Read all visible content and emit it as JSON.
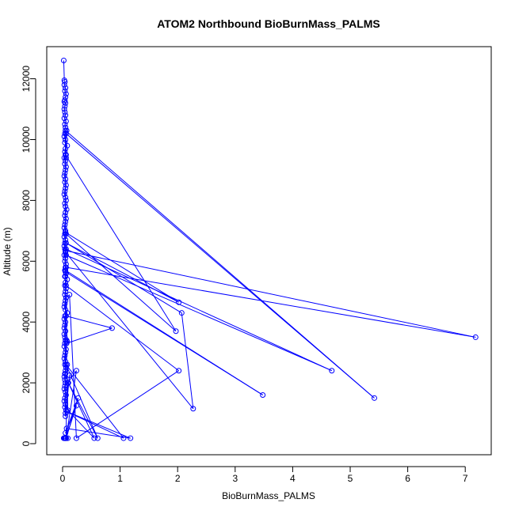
{
  "chart_data": {
    "type": "line",
    "title": "ATOM2 Northbound BioBurnMass_PALMS",
    "xlabel": "BioBurnMass_PALMS",
    "ylabel": "Altitude (m)",
    "xlim": [
      0,
      7.5
    ],
    "ylim": [
      0,
      12600
    ],
    "x_ticks": [
      "0",
      "1",
      "2",
      "3",
      "4",
      "5",
      "6",
      "7"
    ],
    "y_ticks": [
      "0",
      "2000",
      "4000",
      "6000",
      "8000",
      "10000",
      "12000"
    ],
    "grid": false,
    "legend": "none",
    "series_color": "#0000ff",
    "series": [
      {
        "x": [
          0.02,
          0.03,
          0.04,
          0.03,
          0.05,
          0.04,
          0.06,
          0.05,
          0.04,
          0.03,
          0.05,
          0.04,
          0.03,
          0.04,
          0.05,
          0.03,
          0.06,
          0.04,
          0.05,
          0.07,
          0.04,
          0.03,
          0.05,
          0.04,
          0.08,
          0.05,
          0.04,
          0.06,
          0.03,
          0.05,
          0.04,
          0.06,
          0.05,
          0.04,
          0.03,
          0.05,
          0.04,
          0.06,
          0.05,
          0.04,
          0.03,
          0.05,
          0.06,
          0.04,
          0.05,
          0.07,
          0.05,
          0.04,
          0.06,
          0.05,
          0.04,
          0.03,
          0.05,
          0.04,
          0.03,
          0.05,
          0.04,
          0.03,
          0.04,
          0.05,
          0.03,
          0.05,
          0.04,
          0.06,
          0.05,
          0.04,
          0.06,
          0.05,
          0.08,
          0.05,
          0.04,
          0.06,
          0.05,
          0.04,
          0.06,
          0.05,
          0.04,
          0.03,
          0.05,
          0.08,
          0.04,
          0.03,
          0.05,
          0.04,
          0.03,
          0.05,
          0.03,
          0.04,
          0.05,
          0.04,
          0.03,
          0.06,
          0.05,
          0.04,
          0.03,
          0.05,
          0.04,
          0.06,
          0.05,
          0.04,
          0.03,
          0.04,
          0.05,
          0.04,
          0.03,
          0.05,
          0.06,
          0.04,
          0.03,
          0.05,
          0.04,
          0.06,
          0.05,
          0.12,
          0.05,
          0.05,
          5.42,
          0.06,
          0.06,
          0.05,
          1.97,
          0.06,
          0.05,
          2.02,
          0.06,
          2.07,
          2.27,
          0.05,
          0.06,
          4.68,
          0.06,
          0.05,
          7.18,
          0.06,
          0.05,
          3.48,
          0.05,
          0.06,
          0.04,
          0.06,
          2.02,
          0.24,
          0.12,
          0.06,
          0.07,
          0.08,
          0.06,
          0.86,
          0.07,
          0.05,
          0.09,
          0.24,
          0.06,
          0.27,
          0.05,
          0.24,
          0.06,
          0.08,
          0.09,
          0.55,
          0.1,
          0.61,
          0.06,
          1.06,
          0.08,
          1.18,
          0.07,
          0.06,
          0.05,
          0.04,
          0.02,
          0.05,
          0.03,
          0.09
        ],
        "y": [
          12600,
          11950,
          11900,
          11800,
          11700,
          11600,
          11500,
          11400,
          11300,
          11250,
          11200,
          11100,
          11000,
          10900,
          10800,
          10700,
          10600,
          10500,
          10400,
          10300,
          10200,
          10100,
          10000,
          9900,
          9800,
          9700,
          9600,
          9500,
          9400,
          9300,
          9200,
          9100,
          9000,
          8900,
          8800,
          8700,
          8600,
          8500,
          8400,
          8300,
          8200,
          8100,
          8000,
          7900,
          7800,
          7700,
          7600,
          7500,
          7400,
          7300,
          7200,
          7100,
          7000,
          6900,
          6800,
          6700,
          6600,
          6500,
          6400,
          6300,
          6200,
          6100,
          6000,
          5900,
          5800,
          5700,
          5600,
          5500,
          5400,
          5300,
          5200,
          5100,
          5000,
          4900,
          4800,
          4700,
          4600,
          4500,
          4400,
          4300,
          4200,
          4100,
          4000,
          3900,
          3800,
          3700,
          3600,
          3500,
          3400,
          3300,
          3200,
          3100,
          3000,
          2900,
          2800,
          2700,
          2600,
          2500,
          2400,
          2300,
          2200,
          2100,
          2000,
          1900,
          1800,
          1700,
          1600,
          1500,
          1400,
          1300,
          1200,
          1100,
          1000,
          2250,
          900,
          10300,
          1500,
          10200,
          9400,
          9500,
          3700,
          6900,
          6950,
          4650,
          6600,
          4300,
          1150,
          6300,
          6200,
          2400,
          6400,
          6350,
          3500,
          5800,
          5700,
          1600,
          5650,
          5600,
          5500,
          5200,
          2400,
          180,
          4900,
          4800,
          3400,
          3350,
          4200,
          3800,
          3300,
          2300,
          2000,
          2400,
          180,
          1500,
          350,
          1250,
          180,
          2600,
          1100,
          180,
          2000,
          180,
          2600,
          180,
          1050,
          180,
          500,
          180,
          180,
          180,
          180,
          180,
          180,
          180
        ]
      }
    ]
  }
}
